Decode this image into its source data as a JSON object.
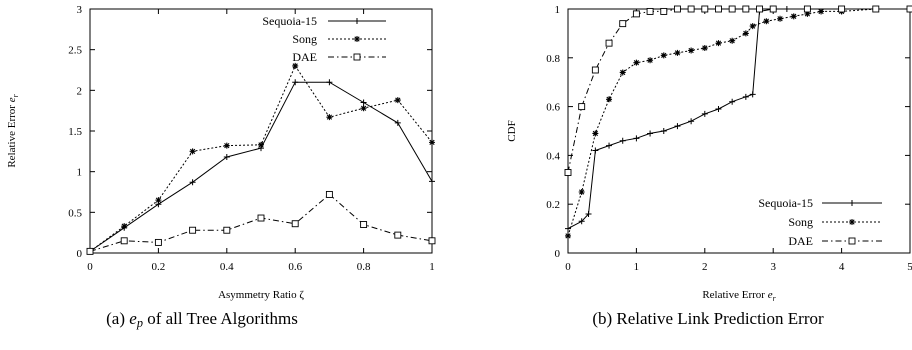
{
  "chart_data": [
    {
      "type": "line",
      "title": "",
      "xlabel": "Asymmetry Ratio ζ",
      "ylabel": "Relative Error e_r",
      "caption": "(a) e_p of all Tree Algorithms",
      "xlim": [
        0,
        1
      ],
      "ylim": [
        0,
        3
      ],
      "xticks": [
        "0",
        "0.2",
        "0.4",
        "0.6",
        "0.8",
        "1"
      ],
      "yticks": [
        "0",
        "0.5",
        "1",
        "1.5",
        "2",
        "2.5",
        "3"
      ],
      "legend_position": "top-right",
      "series": [
        {
          "name": "Sequoia-15",
          "style": "solid",
          "marker": "plus",
          "x": [
            0,
            0.1,
            0.2,
            0.3,
            0.4,
            0.5,
            0.6,
            0.7,
            0.8,
            0.9,
            1.0
          ],
          "y": [
            0.02,
            0.31,
            0.6,
            0.87,
            1.18,
            1.29,
            2.1,
            2.1,
            1.85,
            1.6,
            0.88
          ]
        },
        {
          "name": "Song",
          "style": "dotted",
          "marker": "star",
          "x": [
            0,
            0.1,
            0.2,
            0.3,
            0.4,
            0.5,
            0.6,
            0.7,
            0.8,
            0.9,
            1.0
          ],
          "y": [
            0.02,
            0.33,
            0.65,
            1.25,
            1.32,
            1.33,
            2.3,
            1.67,
            1.78,
            1.88,
            1.36
          ]
        },
        {
          "name": "DAE",
          "style": "dash-dot",
          "marker": "square",
          "x": [
            0,
            0.1,
            0.2,
            0.3,
            0.4,
            0.5,
            0.6,
            0.7,
            0.8,
            0.9,
            1.0
          ],
          "y": [
            0.02,
            0.15,
            0.13,
            0.28,
            0.28,
            0.43,
            0.36,
            0.72,
            0.35,
            0.22,
            0.15
          ]
        }
      ]
    },
    {
      "type": "line",
      "title": "",
      "xlabel": "Relative Error e_r",
      "ylabel": "CDF",
      "caption": "(b) Relative Link Prediction Error",
      "xlim": [
        0,
        5
      ],
      "ylim": [
        0,
        1
      ],
      "xticks": [
        "0",
        "1",
        "2",
        "3",
        "4",
        "5"
      ],
      "yticks": [
        "0",
        "0.2",
        "0.4",
        "0.6",
        "0.8",
        "1"
      ],
      "legend_position": "bottom-right",
      "series": [
        {
          "name": "Sequoia-15",
          "style": "solid",
          "marker": "plus",
          "x": [
            0,
            0.2,
            0.3,
            0.4,
            0.6,
            0.8,
            1.0,
            1.2,
            1.4,
            1.6,
            1.8,
            2.0,
            2.2,
            2.4,
            2.6,
            2.7,
            2.8,
            3.0,
            3.2,
            3.5,
            4.0,
            4.5,
            5.0
          ],
          "y": [
            0.1,
            0.13,
            0.16,
            0.42,
            0.44,
            0.46,
            0.47,
            0.49,
            0.5,
            0.52,
            0.54,
            0.57,
            0.59,
            0.62,
            0.64,
            0.65,
            0.99,
            1.0,
            1.0,
            1.0,
            1.0,
            1.0,
            1.0
          ]
        },
        {
          "name": "Song",
          "style": "dotted",
          "marker": "star",
          "x": [
            0,
            0.2,
            0.4,
            0.6,
            0.8,
            1.0,
            1.2,
            1.4,
            1.6,
            1.8,
            2.0,
            2.2,
            2.4,
            2.6,
            2.7,
            2.9,
            3.1,
            3.3,
            3.5,
            3.7,
            4.0,
            4.5,
            5.0
          ],
          "y": [
            0.07,
            0.25,
            0.49,
            0.63,
            0.74,
            0.78,
            0.79,
            0.81,
            0.82,
            0.83,
            0.84,
            0.86,
            0.87,
            0.9,
            0.93,
            0.95,
            0.96,
            0.97,
            0.98,
            0.99,
            0.99,
            1.0,
            1.0
          ]
        },
        {
          "name": "DAE",
          "style": "dash-dot",
          "marker": "square",
          "x": [
            0,
            0.2,
            0.4,
            0.6,
            0.8,
            1.0,
            1.2,
            1.4,
            1.6,
            1.8,
            2.0,
            2.2,
            2.4,
            2.6,
            2.8,
            3.0,
            3.5,
            4.0,
            4.5,
            5.0
          ],
          "y": [
            0.33,
            0.6,
            0.75,
            0.86,
            0.94,
            0.98,
            0.99,
            0.99,
            1.0,
            1.0,
            1.0,
            1.0,
            1.0,
            1.0,
            1.0,
            1.0,
            1.0,
            1.0,
            1.0,
            1.0
          ]
        }
      ]
    }
  ]
}
